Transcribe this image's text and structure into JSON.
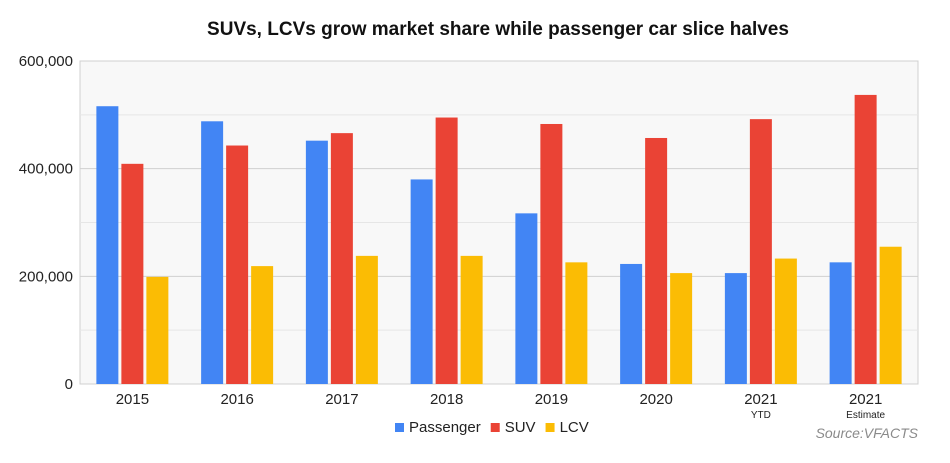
{
  "chart_data": {
    "type": "bar",
    "title": "SUVs, LCVs grow market share while passenger car slice halves",
    "categories": [
      {
        "label": "2015",
        "sublabel": ""
      },
      {
        "label": "2016",
        "sublabel": ""
      },
      {
        "label": "2017",
        "sublabel": ""
      },
      {
        "label": "2018",
        "sublabel": ""
      },
      {
        "label": "2019",
        "sublabel": ""
      },
      {
        "label": "2020",
        "sublabel": ""
      },
      {
        "label": "2021",
        "sublabel": "YTD"
      },
      {
        "label": "2021",
        "sublabel": "Estimate"
      }
    ],
    "series": [
      {
        "name": "Passenger",
        "color": "#4285f4",
        "values": [
          516000,
          488000,
          452000,
          380000,
          317000,
          223000,
          206000,
          226000
        ]
      },
      {
        "name": "SUV",
        "color": "#ea4335",
        "values": [
          409000,
          443000,
          466000,
          495000,
          483000,
          457000,
          492000,
          537000
        ]
      },
      {
        "name": "LCV",
        "color": "#fbbc04",
        "values": [
          199000,
          219000,
          238000,
          238000,
          226000,
          206000,
          233000,
          255000
        ]
      }
    ],
    "ylim": [
      0,
      600000
    ],
    "yticks": [
      0,
      200000,
      400000,
      600000
    ],
    "ytick_labels": [
      "0",
      "200,000",
      "400,000",
      "600,000"
    ],
    "xlabel": "",
    "ylabel": "",
    "grid": true,
    "legend_position": "bottom-center",
    "plot_background": "#f8f8f8",
    "source": "Source:VFACTS"
  }
}
